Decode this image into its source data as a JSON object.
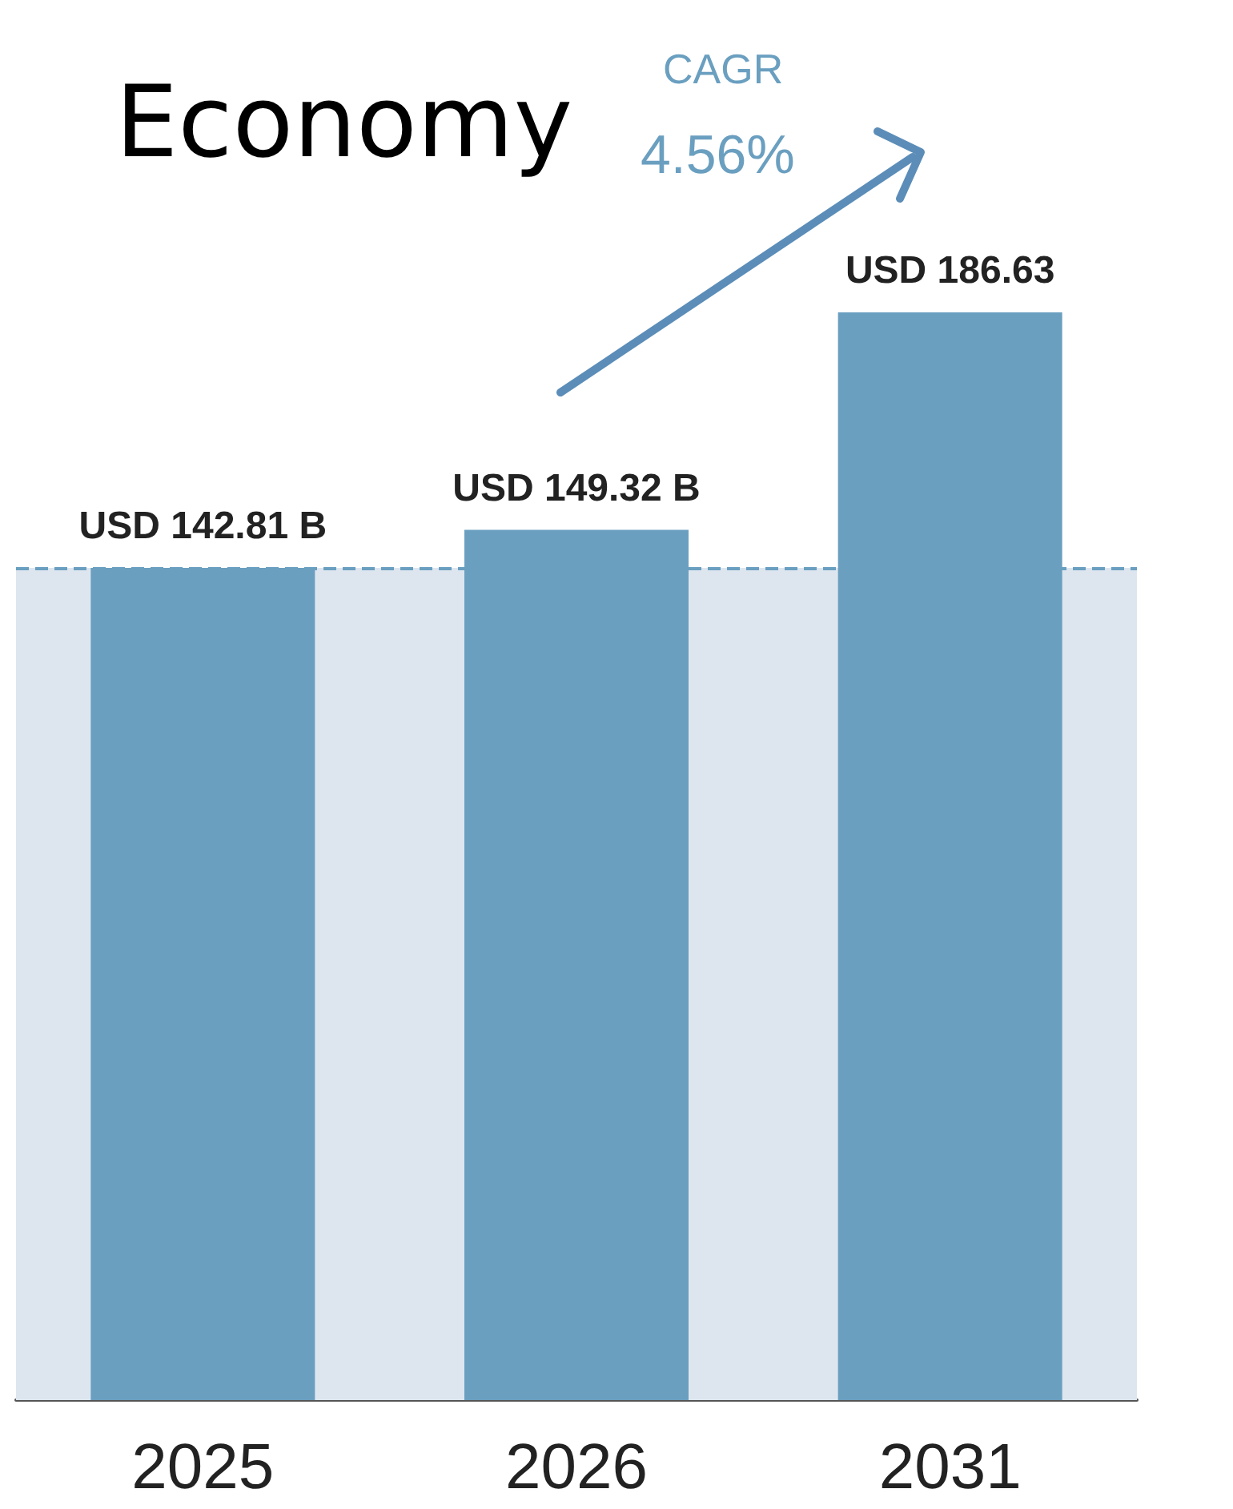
{
  "chart_data": {
    "type": "bar",
    "title": "Economy",
    "categories": [
      "2025",
      "2026",
      "2031"
    ],
    "values": [
      142.81,
      149.32,
      186.63
    ],
    "value_labels": [
      "USD 142.81 B",
      "USD 149.32 B",
      "USD 186.63"
    ],
    "color": "#6a9fc0",
    "ref_lines": [
      {
        "axis": "y",
        "value": 142.81,
        "label": null,
        "color": "#6a9fc0",
        "line_style": "dashed"
      }
    ],
    "bands": [
      {
        "axis": "y",
        "from": 0,
        "to": 142.81,
        "label": null,
        "color": "#dde6ef"
      }
    ],
    "annotations": [
      "CAGR",
      "4.56%"
    ],
    "grid": false
  }
}
